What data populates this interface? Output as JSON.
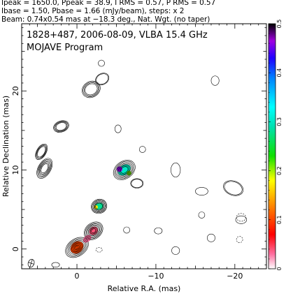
{
  "header": {
    "line1": "Ipeak = 1650.0, Ppeak = 38.9, I RMS = 0.57, P RMS = 0.57",
    "line2": "Ibase = 1.50, Pbase = 1.66 (mJy/beam), steps: x 2",
    "line3": "Beam: 0.74x0.54 mas at −18.3 deg., Nat. Wgt. (no taper)"
  },
  "chart_data": {
    "type": "contour",
    "title": "1828+487, 2006-08-09, VLBA 15.4 GHz",
    "subtitle": "MOJAVE Program",
    "xlabel": "Relative R.A. (mas)",
    "ylabel": "Relative Declination (mas)",
    "xlim": [
      7,
      -24
    ],
    "ylim": [
      -2.5,
      28.5
    ],
    "xticks": [
      0,
      -10,
      -20
    ],
    "xtick_labels": [
      "0",
      "−10",
      "−20"
    ],
    "yticks": [
      0,
      10,
      20
    ],
    "ytick_labels": [
      "0",
      "10",
      "20"
    ],
    "colorbar": {
      "range": [
        0,
        0.5
      ],
      "ticks": [
        0,
        0.1,
        0.2,
        0.3,
        0.4,
        0.5
      ],
      "tick_labels": [
        "0",
        "0.1",
        "0.2",
        "0.3",
        "0.4",
        "0.5"
      ]
    },
    "components": [
      {
        "x": 0.0,
        "y": 0.2,
        "levels": 9,
        "rx": 1.6,
        "ry": 1.1,
        "angle": 35
      },
      {
        "x": -2.1,
        "y": 2.3,
        "levels": 8,
        "rx": 1.3,
        "ry": 1.0,
        "angle": 40
      },
      {
        "x": -2.8,
        "y": 5.4,
        "levels": 6,
        "rx": 1.0,
        "ry": 0.9,
        "angle": 20
      },
      {
        "x": -6.0,
        "y": 10.0,
        "levels": 7,
        "rx": 1.5,
        "ry": 1.1,
        "angle": 35
      },
      {
        "x": 4.1,
        "y": 10.2,
        "levels": 6,
        "rx": 1.4,
        "ry": 0.8,
        "angle": 60
      },
      {
        "x": 4.5,
        "y": 12.3,
        "levels": 4,
        "rx": 1.1,
        "ry": 0.6,
        "angle": 60
      },
      {
        "x": 2.0,
        "y": 15.5,
        "levels": 4,
        "rx": 1.0,
        "ry": 0.7,
        "angle": 20
      },
      {
        "x": -1.8,
        "y": 20.2,
        "levels": 4,
        "rx": 1.2,
        "ry": 1.0,
        "angle": 30
      },
      {
        "x": -3.2,
        "y": 21.5,
        "levels": 2,
        "rx": 0.9,
        "ry": 0.7,
        "angle": 30
      },
      {
        "x": -7.6,
        "y": 8.3,
        "levels": 2,
        "rx": 0.8,
        "ry": 0.6,
        "angle": 0
      },
      {
        "x": -12.5,
        "y": 10.0,
        "levels": 1,
        "rx": 0.6,
        "ry": 0.9,
        "angle": 0
      },
      {
        "x": -15.8,
        "y": 7.3,
        "levels": 1,
        "rx": 0.8,
        "ry": 0.5,
        "angle": 0
      },
      {
        "x": -17.5,
        "y": 21.3,
        "levels": 1,
        "rx": 0.5,
        "ry": 0.6,
        "angle": 0
      },
      {
        "x": -19.8,
        "y": 7.7,
        "levels": 2,
        "rx": 0.9,
        "ry": 1.3,
        "angle": 70
      },
      {
        "x": -20.8,
        "y": 3.7,
        "levels": 1,
        "rx": 0.7,
        "ry": 0.5,
        "angle": 0
      },
      {
        "x": -6.3,
        "y": 2.4,
        "levels": 1,
        "rx": 0.4,
        "ry": 0.4,
        "angle": 0
      },
      {
        "x": -10.3,
        "y": 2.3,
        "levels": 1,
        "rx": 0.5,
        "ry": 0.4,
        "angle": 0
      },
      {
        "x": -12.5,
        "y": -0.2,
        "levels": 1,
        "rx": 0.5,
        "ry": 0.5,
        "angle": 0
      },
      {
        "x": -17.0,
        "y": 1.4,
        "levels": 1,
        "rx": 0.5,
        "ry": 0.5,
        "angle": 0
      },
      {
        "x": -15.8,
        "y": 4.3,
        "levels": 1,
        "rx": 0.4,
        "ry": 0.4,
        "angle": 0
      },
      {
        "x": -5.2,
        "y": 15.2,
        "levels": 1,
        "rx": 0.4,
        "ry": 0.5,
        "angle": 0
      },
      {
        "x": -8.3,
        "y": 12.6,
        "levels": 1,
        "rx": 0.4,
        "ry": 0.4,
        "angle": 0
      },
      {
        "x": -3.1,
        "y": 23.5,
        "levels": 1,
        "rx": 0.4,
        "ry": 0.4,
        "angle": 0
      },
      {
        "x": 2.7,
        "y": -2.0,
        "levels": 1,
        "rx": 0.5,
        "ry": 0.3,
        "angle": 0
      }
    ],
    "negative_components": [
      {
        "x": -20.8,
        "y": 4.0,
        "rx": 0.6,
        "ry": 0.5
      },
      {
        "x": -20.6,
        "y": 1.2,
        "rx": 0.4,
        "ry": 0.4
      },
      {
        "x": -2.8,
        "y": -0.1,
        "rx": 0.4,
        "ry": 0.3
      }
    ],
    "polarization_patches": [
      {
        "x": 0.0,
        "y": 0.2,
        "rx": 0.9,
        "ry": 0.7,
        "angle": 40,
        "value": 0.1
      },
      {
        "x": -1.3,
        "y": 1.3,
        "rx": 0.6,
        "ry": 0.4,
        "angle": 40,
        "value": 0.03
      },
      {
        "x": -2.1,
        "y": 2.3,
        "rx": 0.6,
        "ry": 0.5,
        "angle": 40,
        "value": 0.04
      },
      {
        "x": -2.8,
        "y": 5.4,
        "rx": 0.55,
        "ry": 0.45,
        "angle": 20,
        "value": 0.28
      },
      {
        "x": -2.4,
        "y": 5.3,
        "rx": 0.25,
        "ry": 0.25,
        "angle": 0,
        "value": 0.17
      },
      {
        "x": -6.0,
        "y": 10.0,
        "rx": 0.9,
        "ry": 0.6,
        "angle": 35,
        "value": 0.3
      },
      {
        "x": -5.4,
        "y": 10.1,
        "rx": 0.35,
        "ry": 0.35,
        "angle": 0,
        "value": 0.46
      },
      {
        "x": -6.6,
        "y": 9.6,
        "rx": 0.3,
        "ry": 0.3,
        "angle": 0,
        "value": 0.21
      }
    ],
    "beam": {
      "x": 5.8,
      "y": -1.8,
      "major": 0.74,
      "minor": 0.54,
      "pa_deg": -18.3
    }
  }
}
